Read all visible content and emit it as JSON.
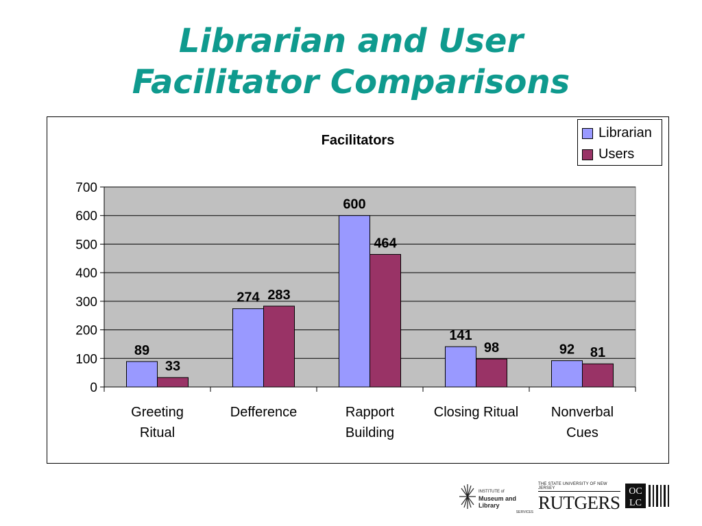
{
  "slide": {
    "title_line1": "Librarian and User",
    "title_line2": "Facilitator Comparisons"
  },
  "chart_data": {
    "type": "bar",
    "title": "Facilitators",
    "categories": [
      [
        "Greeting",
        "Ritual"
      ],
      [
        "Defference"
      ],
      [
        "Rapport",
        "Building"
      ],
      [
        "Closing Ritual"
      ],
      [
        "Nonverbal",
        "Cues"
      ]
    ],
    "series": [
      {
        "name": "Librarian",
        "values": [
          89,
          274,
          600,
          141,
          92
        ],
        "color": "#9999ff"
      },
      {
        "name": "Users",
        "values": [
          33,
          283,
          464,
          98,
          81
        ],
        "color": "#993366"
      }
    ],
    "ylim": [
      0,
      700
    ],
    "yticks": [
      0,
      100,
      200,
      300,
      400,
      500,
      600,
      700
    ],
    "grid": true,
    "plot_background": "#c0c0c0",
    "legend_position": "top-right",
    "xlabel": "",
    "ylabel": ""
  },
  "logos": {
    "imls_line1": "INSTITUTE of",
    "imls_line2": "Museum and Library",
    "imls_line3": "SERVICES",
    "rutgers_top": "THE STATE UNIVERSITY OF NEW JERSEY",
    "rutgers_main": "RUTGERS",
    "oclc": "OCLC",
    "oclc_top": "OC",
    "oclc_bottom": "LC"
  },
  "colors": {
    "title": "#0f9a8e",
    "librarian": "#9999ff",
    "users": "#993366"
  }
}
